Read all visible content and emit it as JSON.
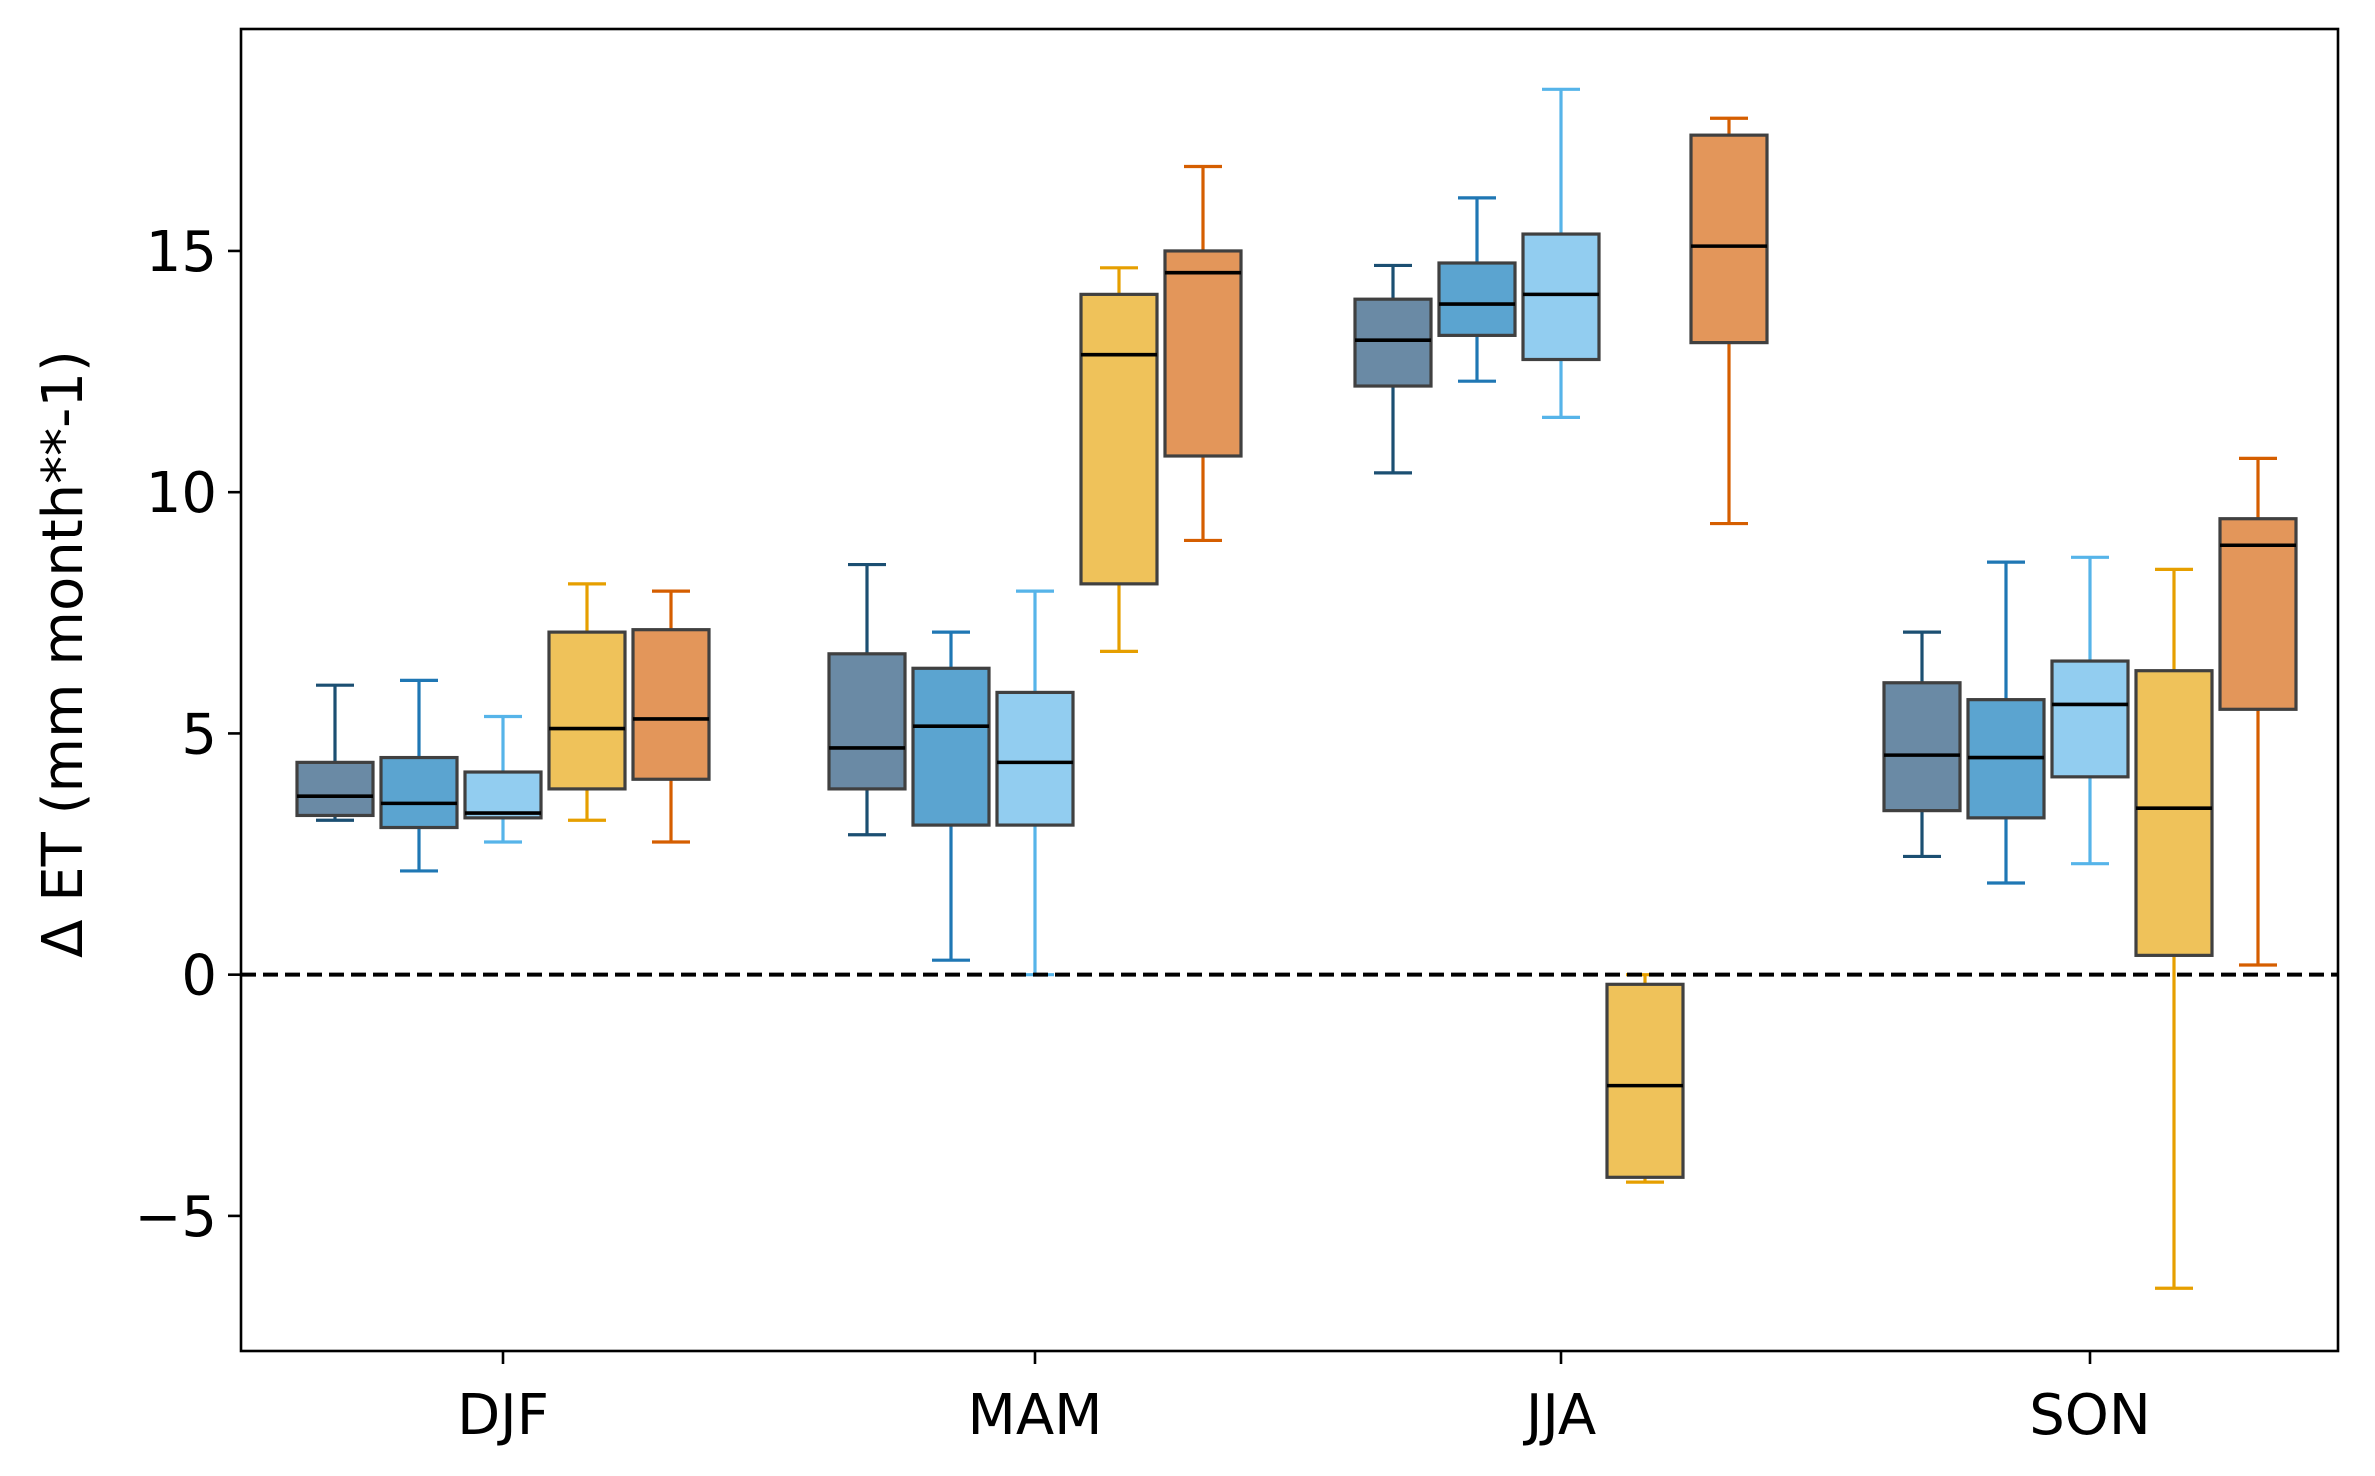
{
  "chart_data": {
    "type": "box",
    "title": "",
    "xlabel": "",
    "ylabel": "Δ ET (mm month**-1)",
    "ylim": [
      -7.8,
      19.6
    ],
    "yticks": [
      -5,
      0,
      5,
      10,
      15
    ],
    "ytick_labels": [
      "−5",
      "0",
      "5",
      "10",
      "15"
    ],
    "reference_line": {
      "y": 0,
      "style": "dashed",
      "color": "#000000"
    },
    "categories": [
      "DJF",
      "MAM",
      "JJA",
      "SON"
    ],
    "series_styles": [
      {
        "fill": "#6a8aa5",
        "whisker": "#1b4f72"
      },
      {
        "fill": "#5ba4d0",
        "whisker": "#1f77b4"
      },
      {
        "fill": "#92cdf0",
        "whisker": "#56b4e9"
      },
      {
        "fill": "#efc25a",
        "whisker": "#e69f00"
      },
      {
        "fill": "#e3965a",
        "whisker": "#d55e00"
      }
    ],
    "groups": [
      {
        "category": "DJF",
        "boxes": [
          {
            "series": 0,
            "min": 3.2,
            "q1": 3.3,
            "median": 3.7,
            "q3": 4.4,
            "max": 6.0
          },
          {
            "series": 1,
            "min": 2.15,
            "q1": 3.05,
            "median": 3.55,
            "q3": 4.5,
            "max": 6.1
          },
          {
            "series": 2,
            "min": 2.75,
            "q1": 3.25,
            "median": 3.35,
            "q3": 4.2,
            "max": 5.35
          },
          {
            "series": 3,
            "min": 3.2,
            "q1": 3.85,
            "median": 5.1,
            "q3": 7.1,
            "max": 8.1
          },
          {
            "series": 4,
            "min": 2.75,
            "q1": 4.05,
            "median": 5.3,
            "q3": 7.15,
            "max": 7.95
          }
        ]
      },
      {
        "category": "MAM",
        "boxes": [
          {
            "series": 0,
            "min": 2.9,
            "q1": 3.85,
            "median": 4.7,
            "q3": 6.65,
            "max": 8.5
          },
          {
            "series": 1,
            "min": 0.3,
            "q1": 3.1,
            "median": 5.15,
            "q3": 6.35,
            "max": 7.1
          },
          {
            "series": 2,
            "min": 0.0,
            "q1": 3.1,
            "median": 4.4,
            "q3": 5.85,
            "max": 7.95
          },
          {
            "series": 3,
            "min": 6.7,
            "q1": 8.1,
            "median": 12.85,
            "q3": 14.1,
            "max": 14.65
          },
          {
            "series": 4,
            "min": 9.0,
            "q1": 10.75,
            "median": 14.55,
            "q3": 15.0,
            "max": 16.75
          }
        ]
      },
      {
        "category": "JJA",
        "boxes": [
          {
            "series": 0,
            "min": 10.4,
            "q1": 12.2,
            "median": 13.15,
            "q3": 14.0,
            "max": 14.7
          },
          {
            "series": 1,
            "min": 12.3,
            "q1": 13.25,
            "median": 13.9,
            "q3": 14.75,
            "max": 16.1
          },
          {
            "series": 2,
            "min": 11.55,
            "q1": 12.75,
            "median": 14.1,
            "q3": 15.35,
            "max": 18.35
          },
          {
            "series": 3,
            "min": -4.3,
            "q1": -4.2,
            "median": -2.3,
            "q3": -0.2,
            "max": 0.0
          },
          {
            "series": 4,
            "min": 9.35,
            "q1": 13.1,
            "median": 15.1,
            "q3": 17.4,
            "max": 17.75
          }
        ]
      },
      {
        "category": "SON",
        "boxes": [
          {
            "series": 0,
            "min": 2.45,
            "q1": 3.4,
            "median": 4.55,
            "q3": 6.05,
            "max": 7.1
          },
          {
            "series": 1,
            "min": 1.9,
            "q1": 3.25,
            "median": 4.5,
            "q3": 5.7,
            "max": 8.55
          },
          {
            "series": 2,
            "min": 2.3,
            "q1": 4.1,
            "median": 5.6,
            "q3": 6.5,
            "max": 8.65
          },
          {
            "series": 3,
            "min": -6.5,
            "q1": 0.4,
            "median": 3.45,
            "q3": 6.3,
            "max": 8.4
          },
          {
            "series": 4,
            "min": 0.2,
            "q1": 5.5,
            "median": 8.9,
            "q3": 9.45,
            "max": 10.7
          }
        ]
      }
    ]
  }
}
